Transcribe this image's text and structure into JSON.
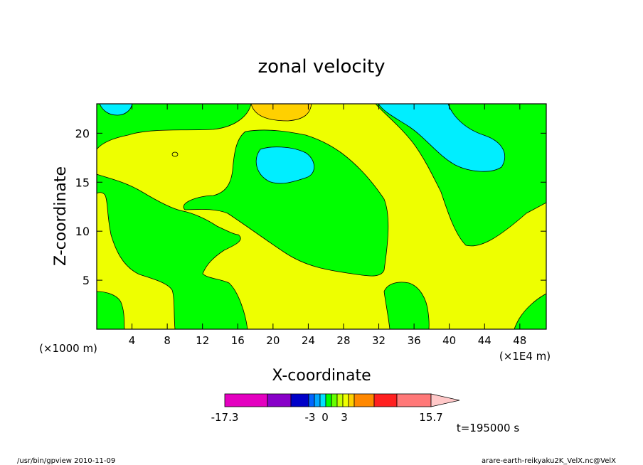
{
  "chart_data": {
    "type": "heatmap",
    "title": "zonal velocity",
    "xlabel": "X-coordinate",
    "ylabel": "Z-coordinate",
    "x_unit_left": "(×1000 m)",
    "x_unit_right": "(×1E4 m)",
    "xlim": [
      0,
      51
    ],
    "ylim": [
      0,
      23
    ],
    "xticks": [
      4,
      8,
      12,
      16,
      20,
      24,
      28,
      32,
      36,
      40,
      44,
      48
    ],
    "yticks": [
      5,
      10,
      15,
      20
    ],
    "legend": {
      "levels": [
        -17.3,
        -12,
        -6,
        -4,
        -3,
        -2,
        -1,
        0,
        1,
        2,
        3,
        6,
        9,
        12,
        15.7
      ],
      "level_labels": [
        "-17.3",
        "-3",
        "0",
        "3",
        "15.7"
      ],
      "colors": [
        "#e400c0",
        "#8800c8",
        "#0000c8",
        "#0066ff",
        "#00a8ff",
        "#00e0ff",
        "#00ff00",
        "#66ff00",
        "#c8ff00",
        "#eeff00",
        "#ffd000",
        "#ff8800",
        "#ff2020",
        "#ff7878",
        "#ffc8c8"
      ]
    },
    "regions": [
      {
        "level": "green",
        "color": "#00ff00"
      },
      {
        "level": "yellow",
        "color": "#eeff00"
      },
      {
        "level": "cyan",
        "color": "#00eeff"
      },
      {
        "level": "orange",
        "color": "#ffd000"
      }
    ],
    "annotation_time": "t=195000 s"
  },
  "footer": {
    "left": "/usr/bin/gpview   2010-11-09",
    "right": "arare-earth-reikyaku2K_VelX.nc@VelX"
  }
}
